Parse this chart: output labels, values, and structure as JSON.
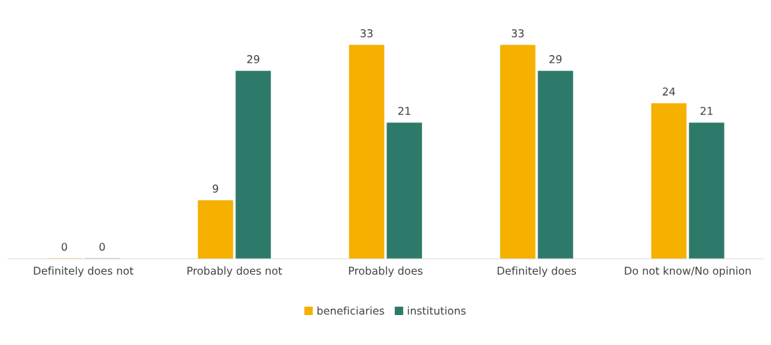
{
  "chart_data": {
    "type": "bar",
    "categories": [
      "Definitely does not",
      "Probably does not",
      "Probably does",
      "Definitely does",
      "Do not know/No opinion"
    ],
    "series": [
      {
        "name": "beneficiaries",
        "color": "#f5b000",
        "values": [
          0,
          9,
          33,
          33,
          24
        ]
      },
      {
        "name": "institutions",
        "color": "#2e7a6a",
        "values": [
          0,
          29,
          21,
          29,
          21
        ]
      }
    ],
    "data_labels": true,
    "legend": "bottom",
    "grid": false
  }
}
